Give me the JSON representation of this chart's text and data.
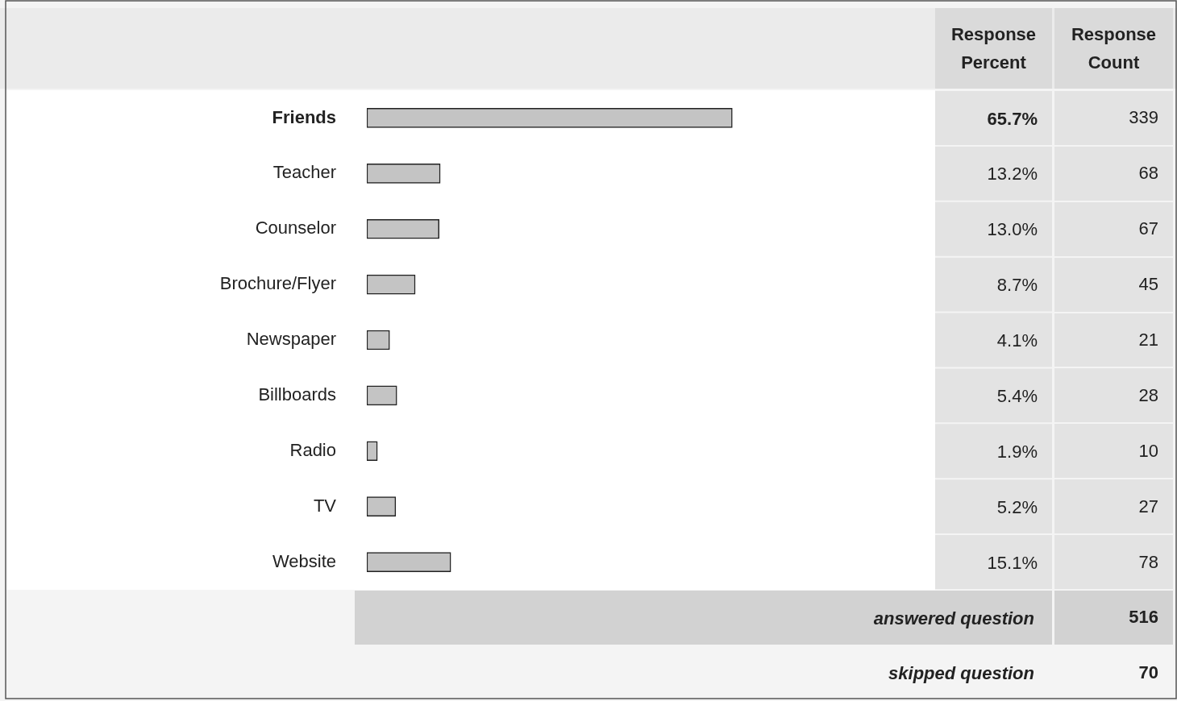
{
  "chart_data": [
    {
      "type": "bar",
      "orientation": "horizontal",
      "categories": [
        "Friends",
        "Teacher",
        "Counselor",
        "Brochure/Flyer",
        "Newspaper",
        "Billboards",
        "Radio",
        "TV",
        "Website"
      ],
      "series": [
        {
          "name": "Response Percent",
          "color": "#c4c4c4",
          "values": [
            65.7,
            13.2,
            13.0,
            8.7,
            4.1,
            5.4,
            1.9,
            5.2,
            15.1
          ],
          "value_labels": [
            "65.7%",
            "13.2%",
            "13.0%",
            "8.7%",
            "4.1%",
            "5.4%",
            "1.9%",
            "5.2%",
            "15.1%"
          ]
        }
      ],
      "tick_labels": "y",
      "legend": false,
      "annotations": [
        "answered question",
        "skipped question"
      ]
    },
    {
      "type": "other",
      "title": "Response Count",
      "annotations": [
        "339",
        "68",
        "67",
        "45",
        "21",
        "28",
        "10",
        "27",
        "78",
        "516",
        "70"
      ]
    }
  ]
}
